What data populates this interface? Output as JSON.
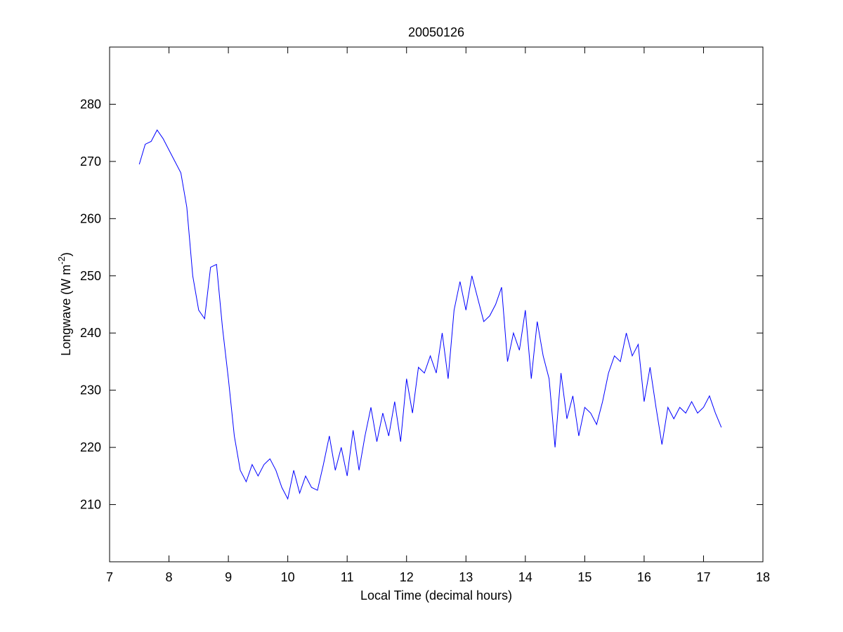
{
  "chart_data": {
    "type": "line",
    "title": "20050126",
    "xlabel": "Local Time (decimal hours)",
    "ylabel": {
      "text": "Longwave (W m",
      "sup": "-2",
      "end": ")"
    },
    "xlim": [
      7,
      18
    ],
    "xticks": [
      7,
      8,
      9,
      10,
      11,
      12,
      13,
      14,
      15,
      16,
      17,
      18
    ],
    "ylim": [
      200,
      290
    ],
    "yticks": [
      210,
      220,
      230,
      240,
      250,
      260,
      270,
      280
    ],
    "grid": false,
    "series": [
      {
        "color": "#0000ff",
        "x": [
          7.5,
          7.6,
          7.7,
          7.8,
          7.9,
          8.0,
          8.1,
          8.2,
          8.3,
          8.4,
          8.5,
          8.6,
          8.7,
          8.8,
          8.9,
          9.0,
          9.1,
          9.2,
          9.3,
          9.4,
          9.5,
          9.6,
          9.7,
          9.8,
          9.9,
          10.0,
          10.1,
          10.2,
          10.3,
          10.4,
          10.5,
          10.6,
          10.7,
          10.8,
          10.9,
          11.0,
          11.1,
          11.2,
          11.3,
          11.4,
          11.5,
          11.6,
          11.7,
          11.8,
          11.9,
          12.0,
          12.1,
          12.2,
          12.3,
          12.4,
          12.5,
          12.6,
          12.7,
          12.8,
          12.9,
          13.0,
          13.1,
          13.2,
          13.3,
          13.4,
          13.5,
          13.6,
          13.7,
          13.8,
          13.9,
          14.0,
          14.1,
          14.2,
          14.3,
          14.4,
          14.5,
          14.6,
          14.7,
          14.8,
          14.9,
          15.0,
          15.1,
          15.2,
          15.3,
          15.4,
          15.5,
          15.6,
          15.7,
          15.8,
          15.9,
          16.0,
          16.1,
          16.2,
          16.3,
          16.4,
          16.5,
          16.6,
          16.7,
          16.8,
          16.9,
          17.0,
          17.1,
          17.2,
          17.3
        ],
        "values": [
          269.5,
          273,
          273.5,
          275.5,
          274,
          272,
          270,
          268,
          262,
          250,
          244,
          242.5,
          251.5,
          252,
          241,
          232,
          222,
          216,
          214,
          217,
          215,
          217,
          218,
          216,
          213,
          211,
          216,
          212,
          215,
          213,
          212.5,
          217,
          222,
          216,
          220,
          215,
          223,
          216,
          222,
          227,
          221,
          226,
          222,
          228,
          221,
          232,
          226,
          234,
          233,
          236,
          233,
          240,
          232,
          244,
          249,
          244,
          250,
          246,
          242,
          243,
          245,
          248,
          235,
          240,
          237,
          244,
          232,
          242,
          236,
          232,
          220,
          233,
          225,
          229,
          222,
          227,
          226,
          224,
          228,
          233,
          236,
          235,
          240,
          236,
          238,
          228,
          234,
          227,
          220.5,
          227,
          225,
          227,
          226,
          228,
          226,
          227,
          229,
          226,
          223.5
        ]
      }
    ]
  }
}
